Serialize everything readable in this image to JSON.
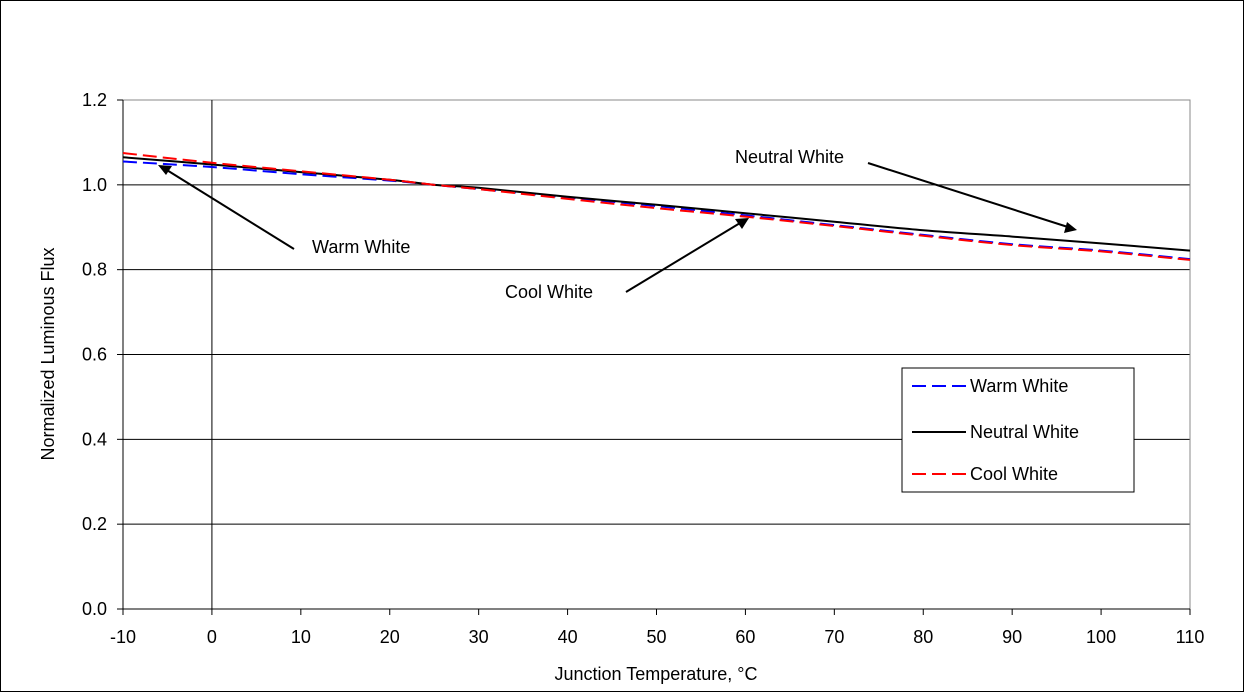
{
  "chart_data": {
    "type": "line",
    "title": "",
    "xlabel": "Junction Temperature, °C",
    "ylabel": "Normalized Luminous Flux",
    "xlim": [
      -10,
      110
    ],
    "ylim": [
      0,
      1.2
    ],
    "xticks": [
      -10,
      0,
      10,
      20,
      30,
      40,
      50,
      60,
      70,
      80,
      90,
      100,
      110
    ],
    "yticks": [
      0.0,
      0.2,
      0.4,
      0.6,
      0.8,
      1.0,
      1.2
    ],
    "ytick_labels": [
      "0.0",
      "0.2",
      "0.4",
      "0.6",
      "0.8",
      "1.0",
      "1.2"
    ],
    "grid": "horizontal",
    "legend_position": "right",
    "x": [
      -10,
      0,
      10,
      20,
      25,
      30,
      40,
      50,
      60,
      70,
      80,
      90,
      100,
      110
    ],
    "series": [
      {
        "name": "Warm White",
        "color": "#0000ff",
        "dash": "dashed",
        "values": [
          1.055,
          1.042,
          1.025,
          1.01,
          1.0,
          0.99,
          0.97,
          0.95,
          0.928,
          0.905,
          0.882,
          0.86,
          0.845,
          0.825
        ]
      },
      {
        "name": "Neutral White",
        "color": "#000000",
        "dash": "solid",
        "values": [
          1.065,
          1.048,
          1.03,
          1.012,
          1.0,
          0.993,
          0.972,
          0.953,
          0.933,
          0.913,
          0.893,
          0.878,
          0.862,
          0.845
        ]
      },
      {
        "name": "Cool White",
        "color": "#ff0000",
        "dash": "dashed",
        "values": [
          1.075,
          1.052,
          1.032,
          1.012,
          1.0,
          0.99,
          0.967,
          0.945,
          0.925,
          0.903,
          0.88,
          0.858,
          0.843,
          0.823
        ]
      }
    ],
    "annotations": [
      {
        "text": "Warm White",
        "arrow_to": [
          -6,
          1.055
        ]
      },
      {
        "text": "Cool White",
        "arrow_to": [
          62,
          0.93
        ]
      },
      {
        "text": "Neutral White",
        "arrow_to": [
          98,
          0.865
        ]
      }
    ]
  }
}
